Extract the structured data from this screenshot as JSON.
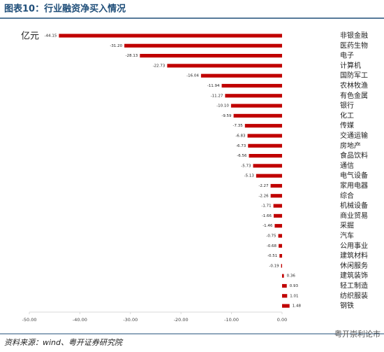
{
  "chart_data": {
    "type": "bar",
    "orientation": "horizontal",
    "title": "图表10：行业融资净买入情况",
    "unit": "亿元",
    "source": "资料来源：wind、粤开证券研究院",
    "watermark": "粤开崇利论市",
    "color": "#c00000",
    "categories": [
      "非银金融",
      "医药生物",
      "电子",
      "计算机",
      "国防军工",
      "农林牧渔",
      "有色金属",
      "银行",
      "化工",
      "传媒",
      "交通运输",
      "房地产",
      "食品饮料",
      "通信",
      "电气设备",
      "家用电器",
      "综合",
      "机械设备",
      "商业贸易",
      "采掘",
      "汽车",
      "公用事业",
      "建筑材料",
      "休闲服务",
      "建筑装饰",
      "轻工制造",
      "纺织服装",
      "钢铁"
    ],
    "values": [
      -44.15,
      -31.2,
      -28.13,
      -22.73,
      -16.04,
      -11.94,
      -11.27,
      -10.1,
      -9.59,
      -7.35,
      -6.83,
      -6.73,
      -6.56,
      -5.73,
      -5.13,
      -2.27,
      -2.26,
      -1.71,
      -1.66,
      -1.46,
      -0.75,
      -0.68,
      -0.51,
      -0.19,
      0.36,
      0.93,
      1.01,
      1.48
    ],
    "value_labels": [
      "-44.15",
      "-31.20",
      "-28.13",
      "-22.73",
      "-16.04",
      "-11.94",
      "-11.27",
      "-10.10",
      "-9.59",
      "-7.35",
      "-6.83",
      "-6.73",
      "-6.56",
      "-5.73",
      "-5.13",
      "-2.27",
      "-2.26",
      "-1.71",
      "-1.66",
      "-1.46",
      "-0.75",
      "-0.68",
      "-0.51",
      "-0.19",
      "0.36",
      "0.93",
      "1.01",
      "1.48"
    ],
    "xlim": [
      -50,
      0
    ],
    "xticks": [
      {
        "value": -50,
        "label": "-50.00"
      },
      {
        "value": -40,
        "label": "-40.00"
      },
      {
        "value": -30,
        "label": "-30.00"
      },
      {
        "value": -20,
        "label": "-20.00"
      },
      {
        "value": -10,
        "label": "-10.00"
      },
      {
        "value": 0,
        "label": "0.00"
      }
    ]
  }
}
